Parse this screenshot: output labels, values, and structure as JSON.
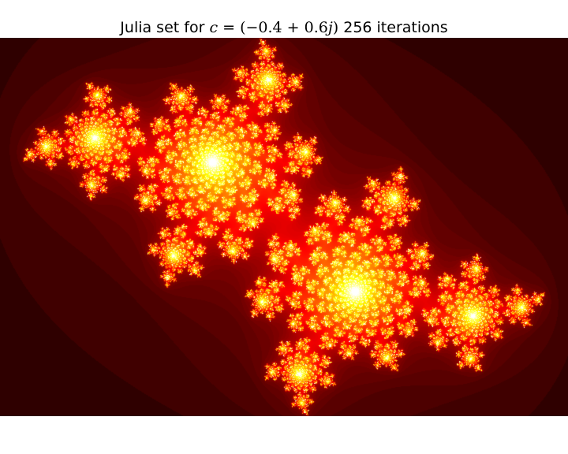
{
  "title": {
    "prefix": "Julia set for ",
    "c_var": "c",
    "equals": " = ",
    "value_open": "(−0.4 + 0.6",
    "j_var": "j",
    "value_close": ")",
    "suffix": " 256 iterations"
  },
  "julia": {
    "c_real": -0.4,
    "c_imag": 0.6,
    "iterations": 256,
    "colormap": "hot",
    "x_range": [
      -1.5,
      1.5
    ],
    "y_range": [
      -1.0,
      1.0
    ]
  },
  "colors": {
    "figure_background": "#ffffff",
    "plot_background": "#000000"
  }
}
